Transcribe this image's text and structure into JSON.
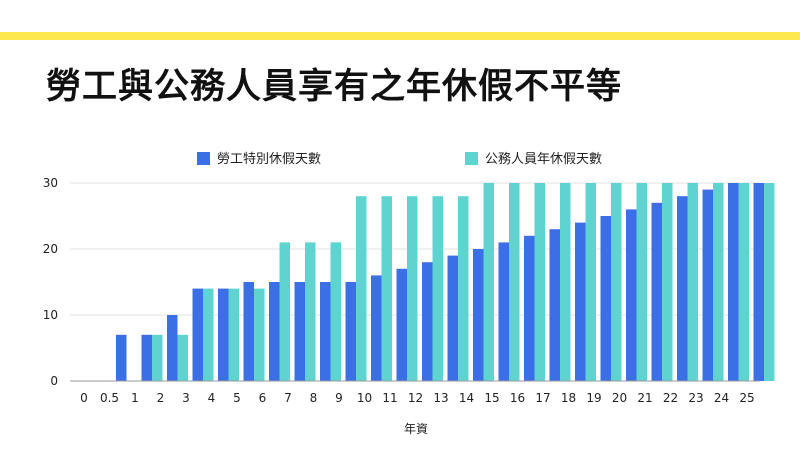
{
  "page": {
    "title": "勞工與公務人員享有之年休假不平等"
  },
  "colors": {
    "accent_bar": "#fce94f",
    "series_labor": "#3b6fe6",
    "series_civil": "#5fd3d0",
    "grid": "#e2e2e2",
    "axis": "#9a9a9a"
  },
  "chart_data": {
    "type": "bar",
    "xlabel": "年資",
    "ylabel": "",
    "ylim": [
      0,
      30
    ],
    "yticks": [
      0,
      10,
      20,
      30
    ],
    "grid": true,
    "legend_position": "top-center",
    "categories": [
      "0",
      "0.5",
      "1",
      "2",
      "3",
      "4",
      "5",
      "6",
      "7",
      "8",
      "9",
      "10",
      "11",
      "12",
      "13",
      "14",
      "15",
      "16",
      "17",
      "18",
      "19",
      "20",
      "21",
      "22",
      "23",
      "24",
      "25"
    ],
    "series": [
      {
        "name": "勞工特別休假天數",
        "values": [
          0,
          7,
          7,
          10,
          14,
          14,
          15,
          15,
          15,
          15,
          15,
          16,
          17,
          18,
          19,
          20,
          21,
          22,
          23,
          24,
          25,
          26,
          27,
          28,
          29,
          30,
          30
        ]
      },
      {
        "name": "公務人員年休假天數",
        "values": [
          0,
          0,
          7,
          7,
          14,
          14,
          14,
          21,
          21,
          21,
          28,
          28,
          28,
          28,
          28,
          30,
          30,
          30,
          30,
          30,
          30,
          30,
          30,
          30,
          30,
          30,
          30
        ]
      }
    ]
  }
}
